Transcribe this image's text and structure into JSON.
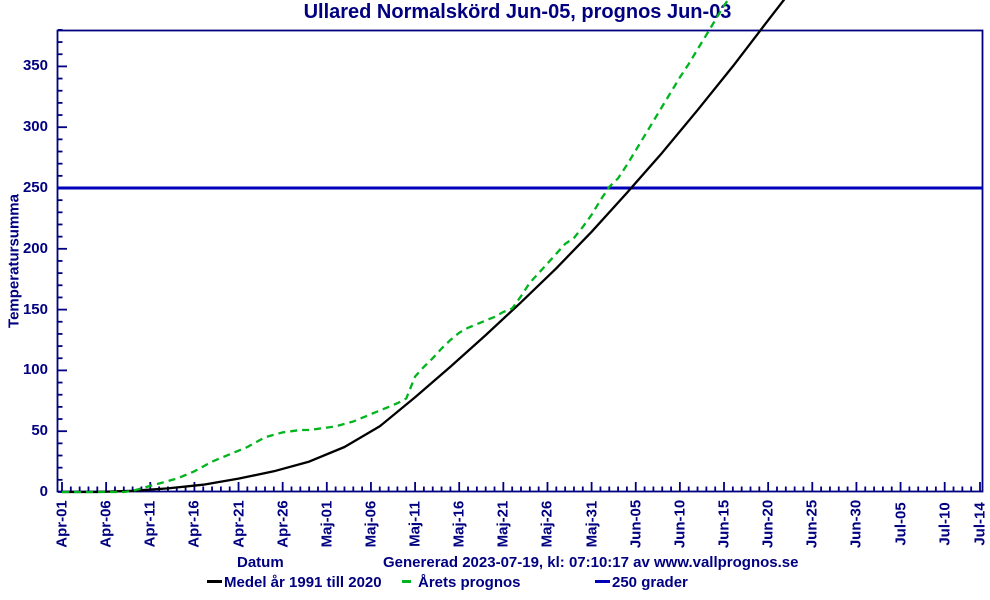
{
  "chart_data": {
    "type": "line",
    "title": "Ullared Normalskörd Jun-05, prognos Jun-03",
    "xlabel": "Datum",
    "ylabel": "Temperatursumma",
    "x_axis": {
      "tick_labels": [
        "Apr-01",
        "Apr-06",
        "Apr-11",
        "Apr-16",
        "Apr-21",
        "Apr-26",
        "Maj-01",
        "Maj-06",
        "Maj-11",
        "Maj-16",
        "Maj-21",
        "Maj-26",
        "Maj-31",
        "Jun-05",
        "Jun-10",
        "Jun-15",
        "Jun-20",
        "Jun-25",
        "Jun-30",
        "Jul-05",
        "Jul-10",
        "Jul-14"
      ],
      "tick_days": [
        0,
        5,
        10,
        15,
        20,
        25,
        30,
        35,
        40,
        45,
        50,
        55,
        60,
        65,
        70,
        75,
        80,
        85,
        90,
        95,
        100,
        104
      ],
      "minor_tick_every_days": 1,
      "range_days": [
        0,
        104
      ]
    },
    "y_axis": {
      "ticks": [
        0,
        50,
        100,
        150,
        200,
        250,
        300,
        350
      ],
      "minor_tick_every": 10,
      "range": [
        0,
        380
      ]
    },
    "reference_line": {
      "value": 250,
      "color": "#0000bb",
      "label": "250 grader"
    },
    "series": [
      {
        "name": "Medel år 1991 till 2020",
        "color": "#000000",
        "line_style": "solid",
        "points": [
          [
            0,
            0
          ],
          [
            4,
            0
          ],
          [
            8,
            1
          ],
          [
            12,
            3
          ],
          [
            16,
            6
          ],
          [
            20,
            11
          ],
          [
            24,
            17
          ],
          [
            28,
            25
          ],
          [
            32,
            37
          ],
          [
            36,
            54
          ],
          [
            40,
            78
          ],
          [
            44,
            103
          ],
          [
            48,
            129
          ],
          [
            52,
            156
          ],
          [
            56,
            184
          ],
          [
            60,
            214
          ],
          [
            64,
            246
          ],
          [
            68,
            279
          ],
          [
            72,
            314
          ],
          [
            76,
            350
          ],
          [
            80,
            388
          ],
          [
            83,
            416
          ]
        ]
      },
      {
        "name": "Årets prognos",
        "color": "#00b41e",
        "line_style": "dashed",
        "points": [
          [
            0,
            0
          ],
          [
            5,
            0
          ],
          [
            7,
            0
          ],
          [
            8,
            1
          ],
          [
            9,
            3
          ],
          [
            10,
            5
          ],
          [
            11,
            7
          ],
          [
            12,
            9
          ],
          [
            13,
            11
          ],
          [
            14,
            14
          ],
          [
            15,
            17
          ],
          [
            16,
            21
          ],
          [
            17,
            25
          ],
          [
            18,
            28
          ],
          [
            19,
            31
          ],
          [
            20,
            34
          ],
          [
            21,
            37
          ],
          [
            22,
            41
          ],
          [
            23,
            45
          ],
          [
            24,
            47
          ],
          [
            25,
            49
          ],
          [
            26,
            50
          ],
          [
            27,
            51
          ],
          [
            28,
            51
          ],
          [
            29,
            52
          ],
          [
            30,
            53
          ],
          [
            31,
            54
          ],
          [
            32,
            56
          ],
          [
            33,
            58
          ],
          [
            34,
            61
          ],
          [
            35,
            64
          ],
          [
            36,
            67
          ],
          [
            37,
            70
          ],
          [
            38,
            73
          ],
          [
            39,
            77
          ],
          [
            40,
            95
          ],
          [
            41,
            103
          ],
          [
            42,
            110
          ],
          [
            43,
            118
          ],
          [
            44,
            125
          ],
          [
            45,
            131
          ],
          [
            46,
            135
          ],
          [
            47,
            138
          ],
          [
            48,
            141
          ],
          [
            49,
            144
          ],
          [
            50,
            148
          ],
          [
            51,
            151
          ],
          [
            52,
            161
          ],
          [
            53,
            172
          ],
          [
            54,
            180
          ],
          [
            55,
            188
          ],
          [
            56,
            196
          ],
          [
            57,
            204
          ],
          [
            58,
            209
          ],
          [
            59,
            218
          ],
          [
            60,
            228
          ],
          [
            61,
            240
          ],
          [
            62,
            251
          ],
          [
            63,
            258
          ],
          [
            64,
            269
          ],
          [
            65,
            281
          ],
          [
            66,
            293
          ],
          [
            67,
            305
          ],
          [
            68,
            317
          ],
          [
            69,
            329
          ],
          [
            70,
            341
          ],
          [
            71,
            352
          ],
          [
            72,
            364
          ],
          [
            73,
            376
          ],
          [
            74,
            388
          ],
          [
            75,
            400
          ],
          [
            76,
            410
          ],
          [
            77,
            420
          ]
        ]
      }
    ]
  },
  "caption": {
    "generated": "Genererad 2023-07-19, kl: 07:10:17 av www.vallprognos.se"
  },
  "legend": {
    "items": [
      {
        "label": "Medel år 1991 till 2020",
        "color": "#000000",
        "style": "solid"
      },
      {
        "label": "Årets prognos",
        "color": "#00b41e",
        "style": "dashed"
      },
      {
        "label": "250 grader",
        "color": "#0000bb",
        "style": "solid"
      }
    ]
  },
  "colors": {
    "text": "#000080",
    "frame": "#000080"
  }
}
